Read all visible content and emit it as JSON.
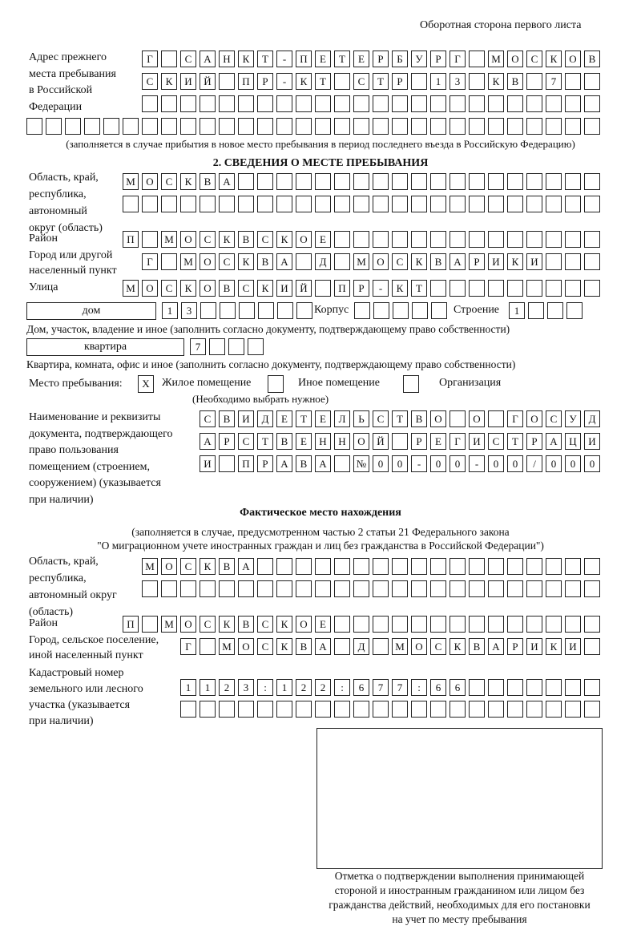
{
  "header": "Оборотная сторона первого листа",
  "previous_address": {
    "label": "Адрес прежнего\nместа пребывания\nв Российской\nФедерации",
    "rows": [
      [
        "Г",
        "",
        "С",
        "А",
        "Н",
        "К",
        "Т",
        "-",
        "П",
        "Е",
        "Т",
        "Е",
        "Р",
        "Б",
        "У",
        "Р",
        "Г",
        "",
        "М",
        "О",
        "С",
        "К",
        "О",
        "В"
      ],
      [
        "С",
        "К",
        "И",
        "Й",
        "",
        "П",
        "Р",
        "-",
        "К",
        "Т",
        "",
        "С",
        "Т",
        "Р",
        "",
        "1",
        "3",
        "",
        "К",
        "В",
        "",
        "7",
        "",
        ""
      ],
      [
        "",
        "",
        "",
        "",
        "",
        "",
        "",
        "",
        "",
        "",
        "",
        "",
        "",
        "",
        "",
        "",
        "",
        "",
        "",
        "",
        "",
        "",
        "",
        ""
      ],
      [
        "",
        "",
        "",
        "",
        "",
        "",
        "",
        "",
        "",
        "",
        "",
        "",
        "",
        "",
        "",
        "",
        "",
        "",
        "",
        "",
        "",
        "",
        "",
        "",
        "",
        "",
        "",
        "",
        "",
        ""
      ]
    ],
    "note": "(заполняется в случае прибытия в новое место пребывания в период последнего въезда в Российскую Федерацию)"
  },
  "section2": {
    "title": "2. СВЕДЕНИЯ О МЕСТЕ ПРЕБЫВАНИЯ",
    "region_label": "Область, край,\nреспублика,\nавтономный\nокруг (область)",
    "region_rows": [
      [
        "М",
        "О",
        "С",
        "К",
        "В",
        "А",
        "",
        "",
        "",
        "",
        "",
        "",
        "",
        "",
        "",
        "",
        "",
        "",
        "",
        "",
        "",
        "",
        "",
        "",
        ""
      ],
      [
        "",
        "",
        "",
        "",
        "",
        "",
        "",
        "",
        "",
        "",
        "",
        "",
        "",
        "",
        "",
        "",
        "",
        "",
        "",
        "",
        "",
        "",
        "",
        "",
        ""
      ]
    ],
    "district_label": "Район",
    "district_row": [
      "П",
      "",
      "М",
      "О",
      "С",
      "К",
      "В",
      "С",
      "К",
      "О",
      "Е",
      "",
      "",
      "",
      "",
      "",
      "",
      "",
      "",
      "",
      "",
      "",
      "",
      "",
      ""
    ],
    "city_label": "Город или другой\nнаселенный пункт",
    "city_row": [
      "Г",
      "",
      "М",
      "О",
      "С",
      "К",
      "В",
      "А",
      "",
      "Д",
      "",
      "М",
      "О",
      "С",
      "К",
      "В",
      "А",
      "Р",
      "И",
      "К",
      "И",
      "",
      "",
      ""
    ],
    "street_label": "Улица",
    "street_row": [
      "М",
      "О",
      "С",
      "К",
      "О",
      "В",
      "С",
      "К",
      "И",
      "Й",
      "",
      "П",
      "Р",
      "-",
      "К",
      "Т",
      "",
      "",
      "",
      "",
      "",
      "",
      "",
      "",
      ""
    ],
    "house_type": "дом",
    "house_cells": [
      "1",
      "3",
      "",
      "",
      "",
      "",
      "",
      ""
    ],
    "korpus_label": "Корпус",
    "korpus_cells": [
      "",
      "",
      "",
      "",
      ""
    ],
    "building_label": "Строение",
    "building_cells": [
      "1",
      "",
      "",
      ""
    ],
    "house_note": "Дом, участок, владение и иное (заполнить согласно документу, подтверждающему право собственности)",
    "apt_type": "квартира",
    "apt_cells": [
      "7",
      "",
      "",
      ""
    ],
    "apt_note": "Квартира, комната, офис и иное (заполнить согласно документу, подтверждающему право собственности)",
    "stay_label": "Место пребывания:",
    "stay_options": [
      {
        "mark": "X",
        "label": "Жилое помещение"
      },
      {
        "mark": "",
        "label": "Иное помещение"
      },
      {
        "mark": "",
        "label": "Организация"
      }
    ],
    "stay_note": "(Необходимо выбрать нужное)",
    "doc_label": "Наименование и реквизиты\nдокумента, подтверждающего\nправо пользования\nпомещением (строением,\nсооружением) (указывается\nпри наличии)",
    "doc_rows": [
      [
        "С",
        "В",
        "И",
        "Д",
        "Е",
        "Т",
        "Е",
        "Л",
        "Ь",
        "С",
        "Т",
        "В",
        "О",
        "",
        "О",
        "",
        "Г",
        "О",
        "С",
        "У",
        "Д"
      ],
      [
        "А",
        "Р",
        "С",
        "Т",
        "В",
        "Е",
        "Н",
        "Н",
        "О",
        "Й",
        "",
        "Р",
        "Е",
        "Г",
        "И",
        "С",
        "Т",
        "Р",
        "А",
        "Ц",
        "И"
      ],
      [
        "И",
        "",
        "П",
        "Р",
        "А",
        "В",
        "А",
        "",
        "№",
        "0",
        "0",
        "-",
        "0",
        "0",
        "-",
        "0",
        "0",
        "/",
        "0",
        "0",
        "0"
      ]
    ]
  },
  "actual": {
    "title": "Фактическое место нахождения",
    "note1": "(заполняется в случае, предусмотренном частью 2 статьи 21 Федерального закона",
    "note2": "\"О миграционном учете иностранных граждан и лиц без гражданства в Российской Федерации\")",
    "region_label": "Область, край,\nреспублика,\nавтономный округ\n(область)",
    "region_rows": [
      [
        "М",
        "О",
        "С",
        "К",
        "В",
        "А",
        "",
        "",
        "",
        "",
        "",
        "",
        "",
        "",
        "",
        "",
        "",
        "",
        "",
        "",
        "",
        "",
        "",
        ""
      ],
      [
        "",
        "",
        "",
        "",
        "",
        "",
        "",
        "",
        "",
        "",
        "",
        "",
        "",
        "",
        "",
        "",
        "",
        "",
        "",
        "",
        "",
        "",
        "",
        ""
      ]
    ],
    "district_label": "Район",
    "district_row": [
      "П",
      "",
      "М",
      "О",
      "С",
      "К",
      "В",
      "С",
      "К",
      "О",
      "Е",
      "",
      "",
      "",
      "",
      "",
      "",
      "",
      "",
      "",
      "",
      "",
      "",
      "",
      ""
    ],
    "city_label": "Город, сельское поселение,\nиной населенный пункт",
    "city_row": [
      "Г",
      "",
      "М",
      "О",
      "С",
      "К",
      "В",
      "А",
      "",
      "Д",
      "",
      "М",
      "О",
      "С",
      "К",
      "В",
      "А",
      "Р",
      "И",
      "К",
      "И",
      ""
    ],
    "cadastre_label": "Кадастровый номер\nземельного или лесного\nучастка (указывается\nпри наличии)",
    "cadastre_rows": [
      [
        "1",
        "1",
        "2",
        "3",
        ":",
        "1",
        "2",
        "2",
        ":",
        "6",
        "7",
        "7",
        ":",
        "6",
        "6",
        "",
        "",
        "",
        "",
        "",
        "",
        ""
      ],
      [
        "",
        "",
        "",
        "",
        "",
        "",
        "",
        "",
        "",
        "",
        "",
        "",
        "",
        "",
        "",
        "",
        "",
        "",
        "",
        "",
        "",
        ""
      ]
    ]
  },
  "stamp_caption": "Отметка о подтверждении выполнения принимающей\nстороной и иностранным гражданином или лицом без\nгражданства действий, необходимых для его постановки\nна учет по месту пребывания"
}
